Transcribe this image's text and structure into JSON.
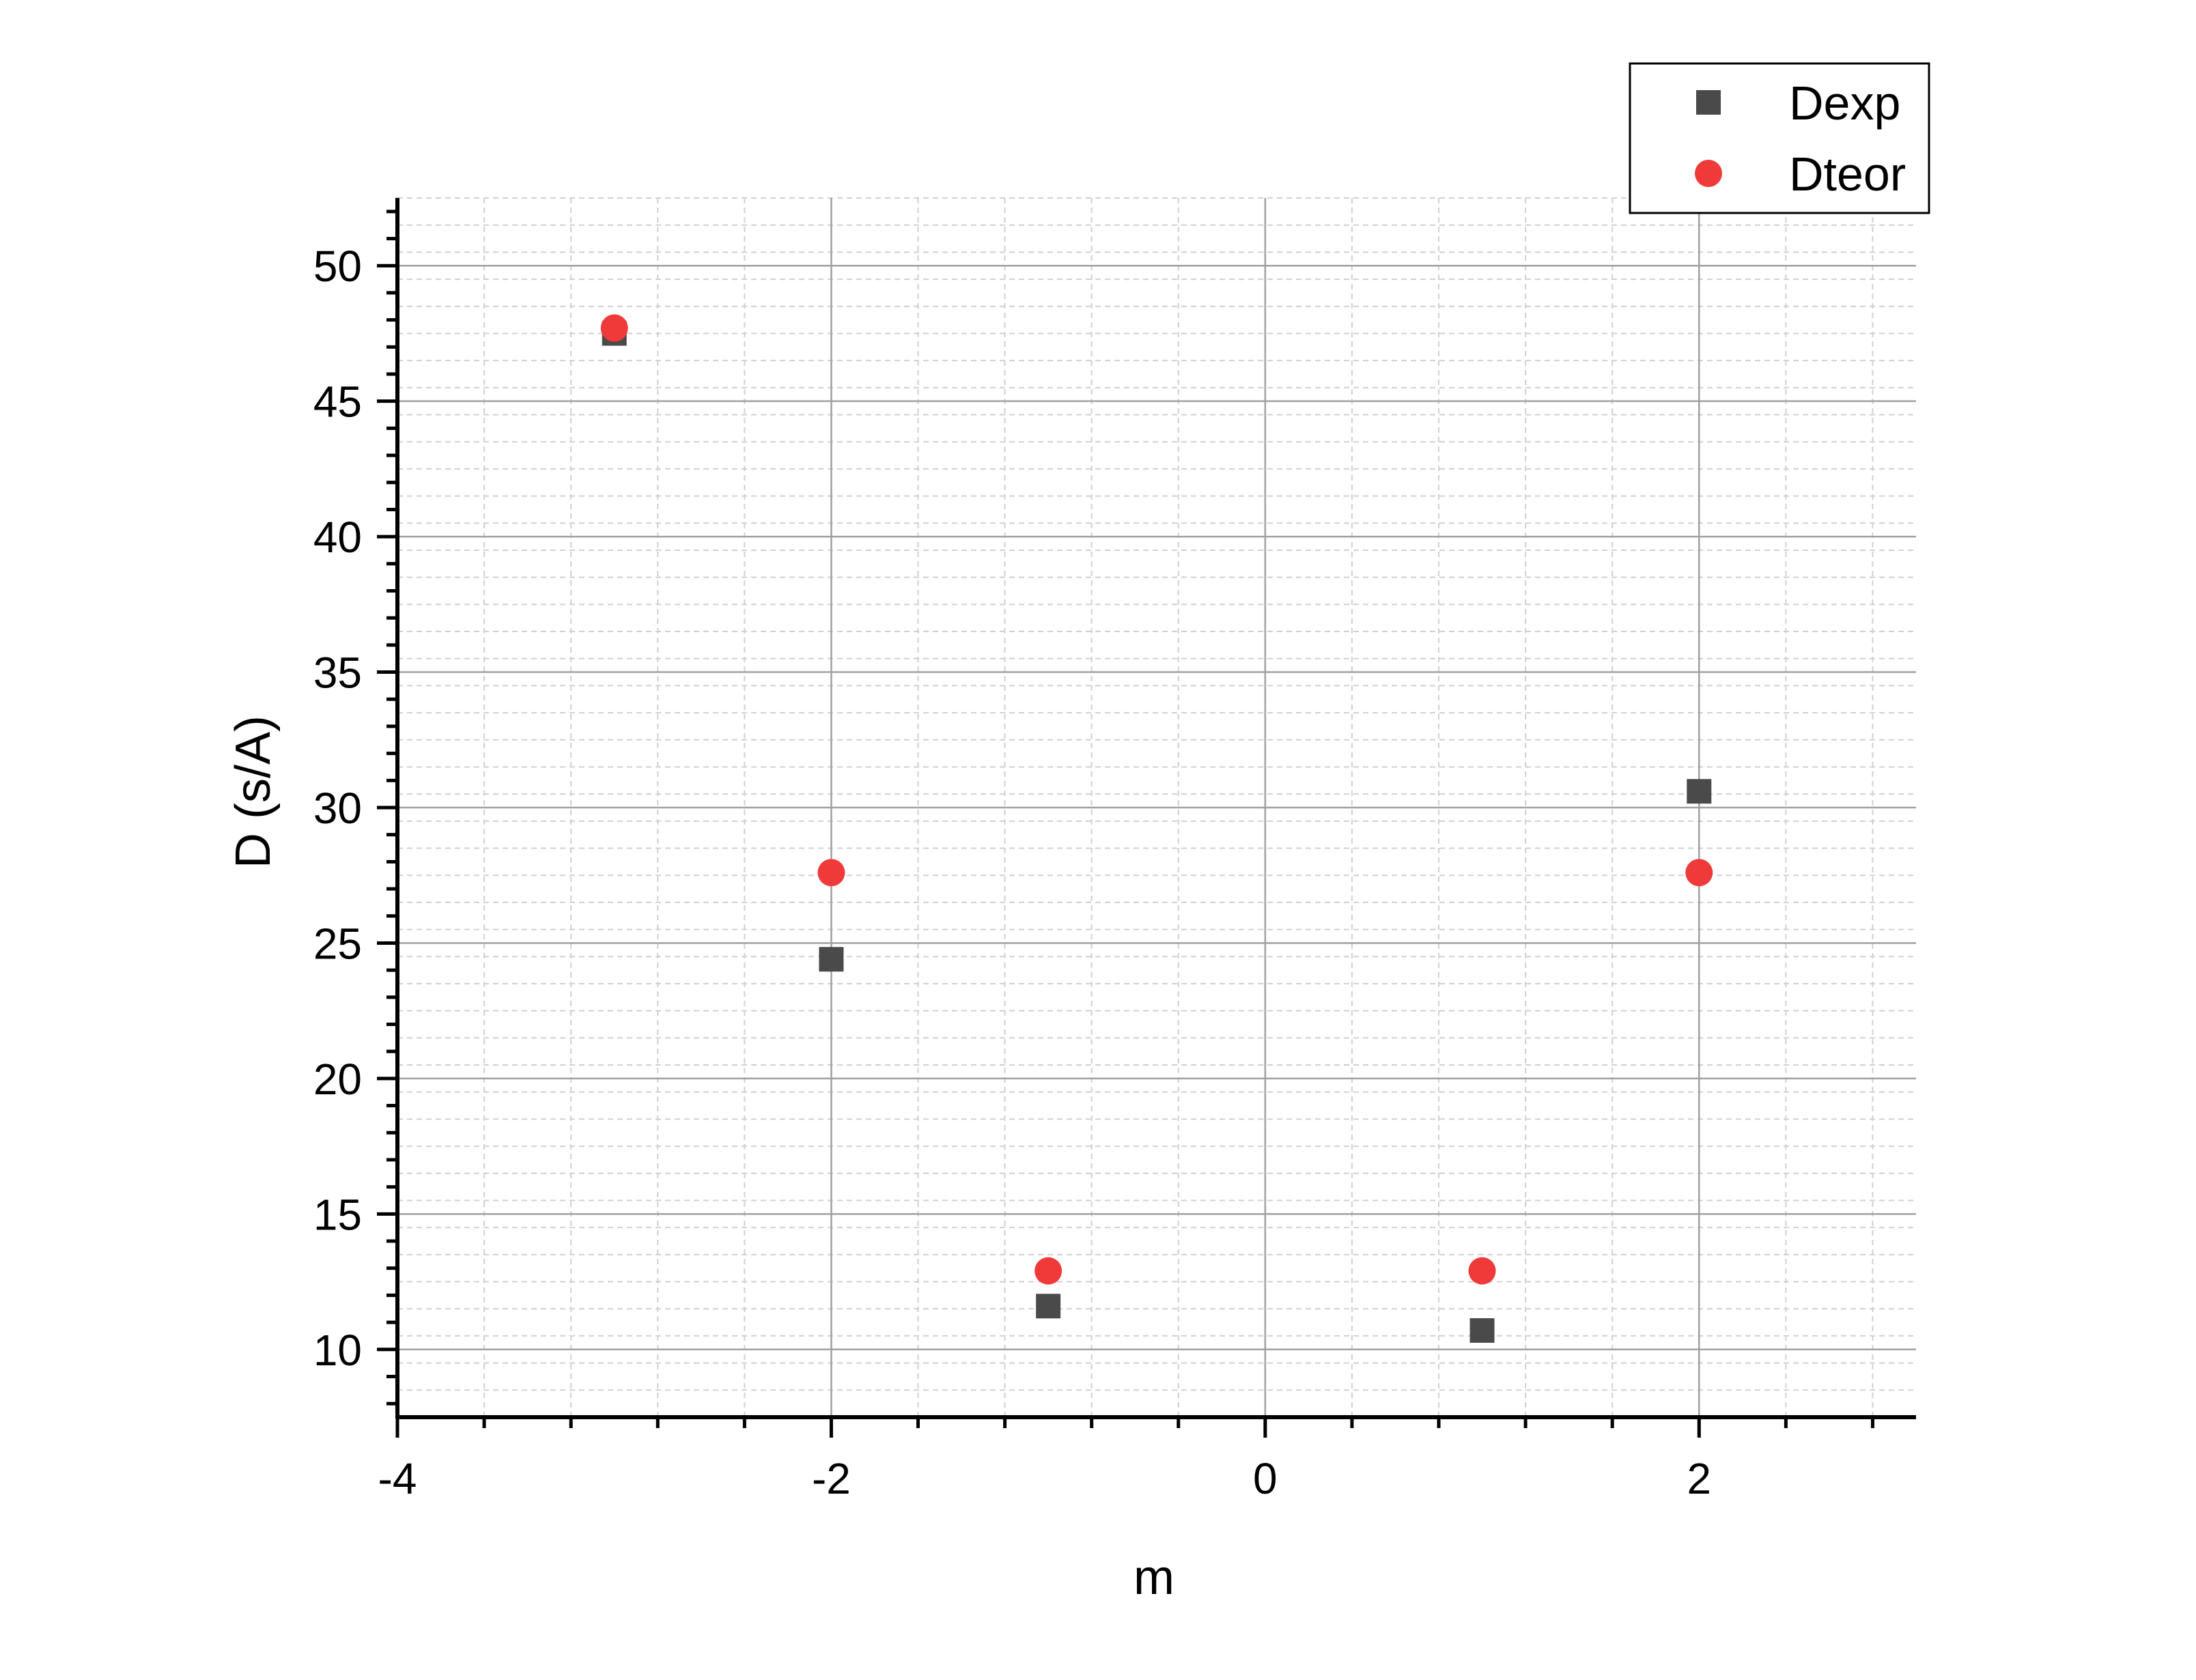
{
  "chart_data": {
    "type": "scatter",
    "title": "",
    "xlabel": "m",
    "ylabel": "D (s/A)",
    "xlim": [
      -4,
      3
    ],
    "ylim": [
      7.5,
      52.5
    ],
    "xticks": [
      -4,
      -2,
      0,
      2
    ],
    "xtick_labels": [
      "-4",
      "-2",
      "0",
      "2"
    ],
    "yticks": [
      10,
      15,
      20,
      25,
      30,
      35,
      40,
      45,
      50
    ],
    "ytick_labels": [
      "10",
      "15",
      "20",
      "25",
      "30",
      "35",
      "40",
      "45",
      "50"
    ],
    "grid": true,
    "legend_position": "top-right",
    "series": [
      {
        "name": "Dexp",
        "marker": "square",
        "color": "#4a4a4a",
        "points": [
          {
            "x": -3,
            "y": 47.5
          },
          {
            "x": -2,
            "y": 24.4
          },
          {
            "x": -1,
            "y": 11.6
          },
          {
            "x": 1,
            "y": 10.7
          },
          {
            "x": 2,
            "y": 30.6
          }
        ]
      },
      {
        "name": "Dteor",
        "marker": "circle",
        "color": "#f03a3a",
        "points": [
          {
            "x": -3,
            "y": 47.7
          },
          {
            "x": -2,
            "y": 27.6
          },
          {
            "x": -1,
            "y": 12.9
          },
          {
            "x": 1,
            "y": 12.9
          },
          {
            "x": 2,
            "y": 27.6
          }
        ]
      }
    ]
  }
}
